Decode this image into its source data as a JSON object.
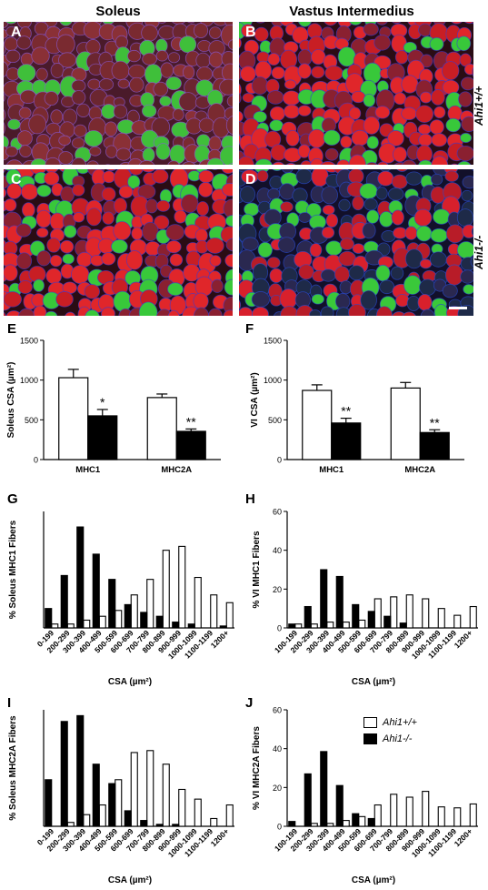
{
  "columns": {
    "left": "Soleus",
    "right": "Vastus Intermedius"
  },
  "rows": {
    "top": "Ahi1+/+",
    "bottom": "Ahi1-/-"
  },
  "panels": [
    {
      "letter": "A",
      "tone": "mixed-green"
    },
    {
      "letter": "B",
      "tone": "red-green"
    },
    {
      "letter": "C",
      "tone": "red-green"
    },
    {
      "letter": "D",
      "tone": "dark-red"
    }
  ],
  "legend": {
    "items": [
      {
        "label": "Ahi1+/+",
        "fill": "#ffffff"
      },
      {
        "label": "Ahi1-/-",
        "fill": "#000000"
      }
    ]
  },
  "chart_data": [
    {
      "letter": "E",
      "type": "bar",
      "ylabel": "Soleus CSA (µm²)",
      "categories": [
        "MHC1",
        "MHC2A"
      ],
      "ylim": [
        0,
        1500
      ],
      "yticks": [
        0,
        500,
        1000,
        1500
      ],
      "series": [
        {
          "name": "Ahi1+/+",
          "values": [
            1030,
            780
          ],
          "errors": [
            105,
            45
          ]
        },
        {
          "name": "Ahi1-/-",
          "values": [
            550,
            355
          ],
          "errors": [
            80,
            30
          ]
        }
      ],
      "annotations": [
        {
          "category": 0,
          "series": 1,
          "text": "*"
        },
        {
          "category": 1,
          "series": 1,
          "text": "**"
        }
      ]
    },
    {
      "letter": "F",
      "type": "bar",
      "ylabel": "VI CSA (µm²)",
      "categories": [
        "MHC1",
        "MHC2A"
      ],
      "ylim": [
        0,
        1500
      ],
      "yticks": [
        0,
        500,
        1000,
        1500
      ],
      "series": [
        {
          "name": "Ahi1+/+",
          "values": [
            870,
            900
          ],
          "errors": [
            70,
            70
          ]
        },
        {
          "name": "Ahi1-/-",
          "values": [
            460,
            340
          ],
          "errors": [
            60,
            35
          ]
        }
      ],
      "annotations": [
        {
          "category": 0,
          "series": 1,
          "text": "**"
        },
        {
          "category": 1,
          "series": 1,
          "text": "**"
        }
      ]
    },
    {
      "letter": "G",
      "type": "bar",
      "ylabel": "% Soleus MHC1 Fibers",
      "xlabel": "CSA (µm²)",
      "categories": [
        "0-199",
        "200-299",
        "300-399",
        "400-499",
        "500-599",
        "600-699",
        "700-799",
        "800-899",
        "900-999",
        "1000-1099",
        "1100-1199",
        "1200+"
      ],
      "ylim": [
        0,
        30
      ],
      "yticks": [],
      "series": [
        {
          "name": "Ahi1+/+",
          "values": [
            1,
            1,
            2,
            3,
            4.5,
            8.5,
            12.5,
            20,
            21,
            13,
            8.5,
            6.5
          ]
        },
        {
          "name": "Ahi1-/-",
          "values": [
            5,
            13.5,
            26,
            19,
            12.5,
            6,
            4,
            3,
            1.5,
            1,
            0,
            0.5
          ]
        }
      ]
    },
    {
      "letter": "H",
      "type": "bar",
      "ylabel": "% VI MHC1 Fibers",
      "xlabel": "CSA (µm²)",
      "categories": [
        "100-199",
        "200-299",
        "300-399",
        "400-499",
        "500-599",
        "600-699",
        "700-799",
        "800-899",
        "900-999",
        "1000-1099",
        "1100-1199",
        "1200+"
      ],
      "ylim": [
        0,
        60
      ],
      "yticks": [
        0,
        20,
        40,
        60
      ],
      "series": [
        {
          "name": "Ahi1+/+",
          "values": [
            2,
            2,
            3,
            3,
            4,
            15,
            16,
            17,
            15,
            10,
            6.5,
            11
          ]
        },
        {
          "name": "Ahi1-/-",
          "values": [
            2,
            11,
            30,
            26.5,
            12,
            8.5,
            6,
            2.5,
            0,
            0,
            0,
            0
          ]
        }
      ]
    },
    {
      "letter": "I",
      "type": "bar",
      "ylabel": "% Soleus MHC2A Fibers",
      "xlabel": "CSA (µm²)",
      "categories": [
        "0-199",
        "200-299",
        "300-399",
        "400-499",
        "500-599",
        "600-699",
        "700-799",
        "800-899",
        "900-999",
        "1000-1099",
        "1100-1199",
        "1200+"
      ],
      "ylim": [
        0,
        30
      ],
      "yticks": [],
      "series": [
        {
          "name": "Ahi1+/+",
          "values": [
            0,
            1,
            3,
            5.5,
            12,
            19,
            19.5,
            16,
            9.5,
            7,
            2,
            5.5
          ]
        },
        {
          "name": "Ahi1-/-",
          "values": [
            12,
            27,
            28.5,
            16,
            11,
            4,
            1.5,
            0.5,
            0.5,
            0,
            0,
            0
          ]
        }
      ]
    },
    {
      "letter": "J",
      "type": "bar",
      "ylabel": "% VI MHC2A Fibers",
      "xlabel": "CSA (µm²)",
      "categories": [
        "100-199",
        "200-299",
        "300-399",
        "400-499",
        "500-599",
        "600-699",
        "700-799",
        "800-899",
        "900-999",
        "1000-1099",
        "1100-1199",
        "1200+"
      ],
      "ylim": [
        0,
        60
      ],
      "yticks": [
        0,
        20,
        40,
        60
      ],
      "series": [
        {
          "name": "Ahi1+/+",
          "values": [
            0,
            1.5,
            1.5,
            3,
            5,
            11,
            16.5,
            15,
            18,
            10,
            9.5,
            11.5
          ]
        },
        {
          "name": "Ahi1-/-",
          "values": [
            2.5,
            27,
            38.5,
            21,
            6.5,
            4,
            0,
            0,
            0,
            0,
            0,
            0
          ]
        }
      ]
    }
  ]
}
